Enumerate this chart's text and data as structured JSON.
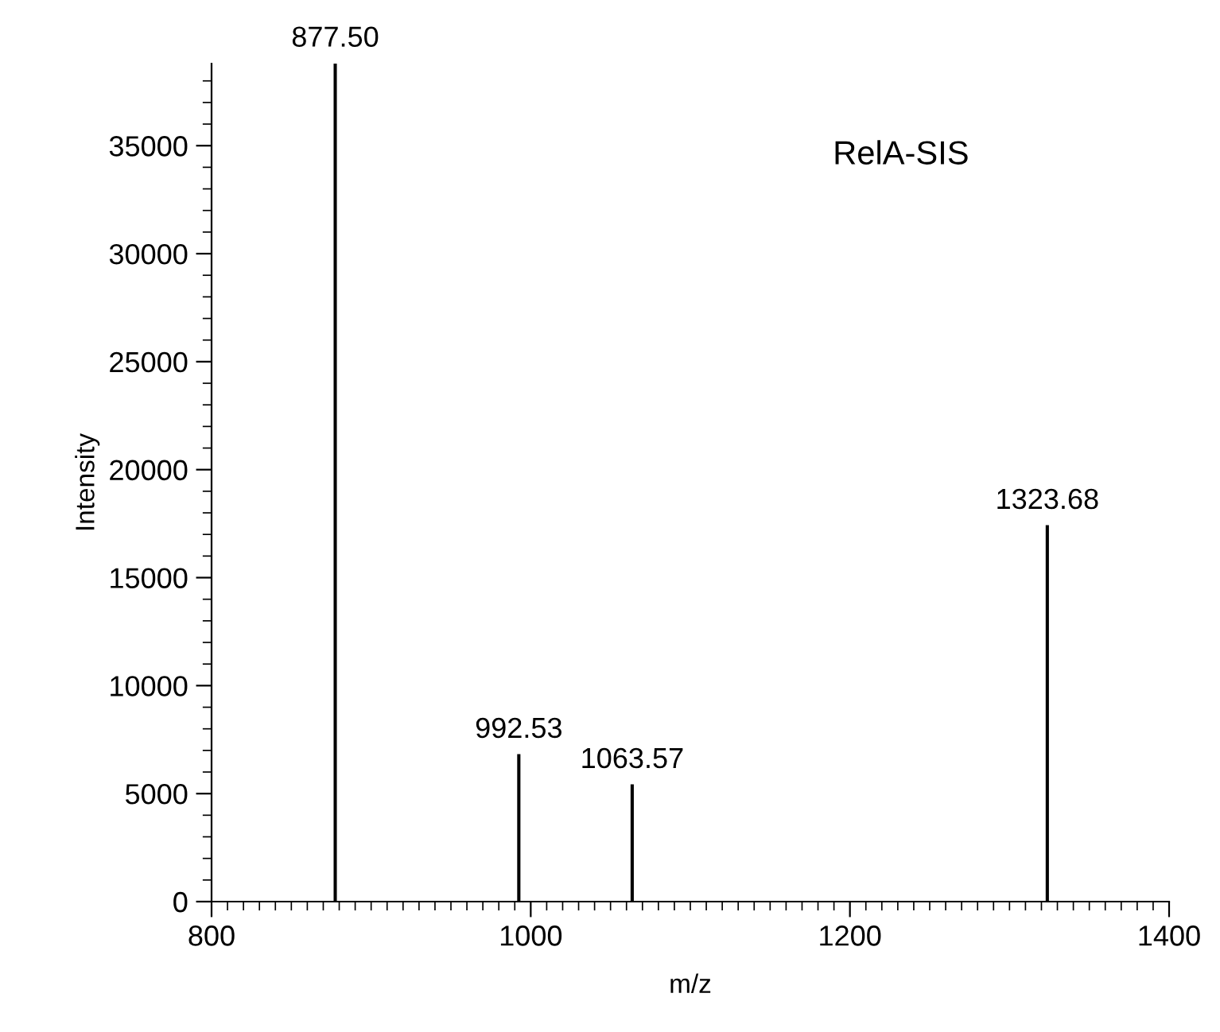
{
  "chart_data": {
    "type": "bar",
    "xlabel": "m/z",
    "ylabel": "Intensity",
    "annotations": [
      "RelA-SIS",
      {
        "text": "877.50",
        "x": 877.5,
        "y": 38800
      },
      {
        "text": "992.53",
        "x": 992.53,
        "y": 6800
      },
      {
        "text": "1063.57",
        "x": 1063.57,
        "y": 5400
      },
      {
        "text": "1323.68",
        "x": 1323.68,
        "y": 17400
      }
    ],
    "x": [
      877.5,
      992.53,
      1063.57,
      1323.68
    ],
    "values": [
      38800,
      6800,
      5400,
      17400
    ],
    "color": "#000000",
    "xlim": [
      800,
      1400
    ],
    "xticks": [
      800,
      1000,
      1200,
      1400
    ],
    "ylim": [
      0,
      38800
    ],
    "yticks": [
      0,
      5000,
      10000,
      15000,
      20000,
      25000,
      30000,
      35000
    ],
    "grid": false,
    "legend": false
  }
}
